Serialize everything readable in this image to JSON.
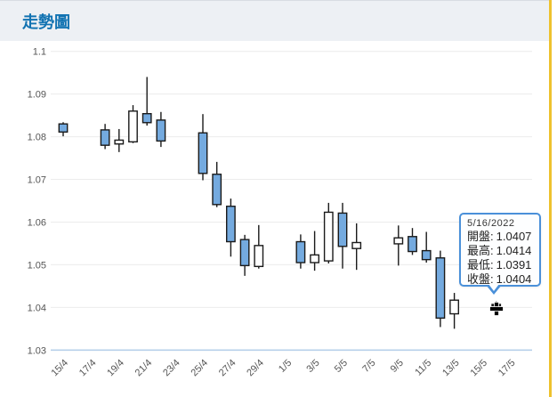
{
  "header": {
    "title": "走勢圖"
  },
  "colors": {
    "title": "#1273b2",
    "header_bg": "#edf0f4",
    "candle_up_fill": "#ffffff",
    "candle_down_fill": "#74aadf",
    "candle_stroke": "#1a1a1a",
    "grid": "#ececec",
    "axis_line": "#b7d0ea",
    "axis_label": "#555555",
    "tooltip_border": "#4a90d9",
    "tooltip_bg": "#fdfeff",
    "side_border": "#eec22e",
    "cursor": "#000000"
  },
  "chart_data": {
    "type": "candlestick",
    "title": "走勢圖",
    "ylim": [
      1.03,
      1.1
    ],
    "grid": true,
    "y_ticks": [
      1.1,
      1.09,
      1.08,
      1.07,
      1.06,
      1.05,
      1.04,
      1.03
    ],
    "y_tick_labels": [
      "1.1",
      "1.09",
      "1.08",
      "1.07",
      "1.06",
      "1.05",
      "1.04",
      "1.03"
    ],
    "x_tick_labels": [
      "15/4",
      "17/4",
      "19/4",
      "21/4",
      "23/4",
      "25/4",
      "27/4",
      "29/4",
      "1/5",
      "3/5",
      "5/5",
      "7/5",
      "9/5",
      "11/5",
      "13/5",
      "15/5",
      "17/5"
    ],
    "x_tick_day_offsets": [
      0,
      2,
      4,
      6,
      8,
      10,
      12,
      14,
      16,
      18,
      20,
      22,
      24,
      26,
      28,
      30,
      32
    ],
    "candles": [
      {
        "date": "15/4",
        "day_offset": 0,
        "open": 1.083,
        "high": 1.0834,
        "low": 1.0801,
        "close": 1.0811
      },
      {
        "date": "18/4",
        "day_offset": 3,
        "open": 1.0816,
        "high": 1.083,
        "low": 1.0771,
        "close": 1.078
      },
      {
        "date": "19/4",
        "day_offset": 4,
        "open": 1.0783,
        "high": 1.0818,
        "low": 1.0764,
        "close": 1.0792
      },
      {
        "date": "20/4",
        "day_offset": 5,
        "open": 1.0788,
        "high": 1.0874,
        "low": 1.0785,
        "close": 1.086
      },
      {
        "date": "21/4",
        "day_offset": 6,
        "open": 1.0854,
        "high": 1.094,
        "low": 1.0826,
        "close": 1.0833
      },
      {
        "date": "22/4",
        "day_offset": 7,
        "open": 1.0839,
        "high": 1.0858,
        "low": 1.0776,
        "close": 1.079
      },
      {
        "date": "25/4",
        "day_offset": 10,
        "open": 1.0809,
        "high": 1.0853,
        "low": 1.0698,
        "close": 1.0714
      },
      {
        "date": "26/4",
        "day_offset": 11,
        "open": 1.0712,
        "high": 1.0741,
        "low": 1.0635,
        "close": 1.0641
      },
      {
        "date": "27/4",
        "day_offset": 12,
        "open": 1.0637,
        "high": 1.0655,
        "low": 1.0519,
        "close": 1.0554
      },
      {
        "date": "28/4",
        "day_offset": 13,
        "open": 1.0559,
        "high": 1.057,
        "low": 1.0474,
        "close": 1.0498
      },
      {
        "date": "29/4",
        "day_offset": 14,
        "open": 1.0496,
        "high": 1.0593,
        "low": 1.0491,
        "close": 1.0545
      },
      {
        "date": "2/5",
        "day_offset": 17,
        "open": 1.0554,
        "high": 1.0571,
        "low": 1.0491,
        "close": 1.0505
      },
      {
        "date": "3/5",
        "day_offset": 18,
        "open": 1.0505,
        "high": 1.0579,
        "low": 1.0486,
        "close": 1.0523
      },
      {
        "date": "4/5",
        "day_offset": 19,
        "open": 1.0509,
        "high": 1.0645,
        "low": 1.0503,
        "close": 1.0623
      },
      {
        "date": "5/5",
        "day_offset": 20,
        "open": 1.0621,
        "high": 1.0645,
        "low": 1.0491,
        "close": 1.0543
      },
      {
        "date": "6/5",
        "day_offset": 21,
        "open": 1.0538,
        "high": 1.0597,
        "low": 1.0488,
        "close": 1.0552
      },
      {
        "date": "9/5",
        "day_offset": 24,
        "open": 1.0549,
        "high": 1.0592,
        "low": 1.0498,
        "close": 1.0563
      },
      {
        "date": "10/5",
        "day_offset": 25,
        "open": 1.0566,
        "high": 1.0586,
        "low": 1.0523,
        "close": 1.0531
      },
      {
        "date": "11/5",
        "day_offset": 26,
        "open": 1.0533,
        "high": 1.0577,
        "low": 1.0505,
        "close": 1.0512
      },
      {
        "date": "12/5",
        "day_offset": 27,
        "open": 1.0516,
        "high": 1.0533,
        "low": 1.0354,
        "close": 1.0375
      },
      {
        "date": "13/5",
        "day_offset": 28,
        "open": 1.0385,
        "high": 1.0434,
        "low": 1.035,
        "close": 1.0417
      },
      {
        "date": "16/5",
        "day_offset": 31,
        "open": 1.0407,
        "high": 1.0414,
        "low": 1.0391,
        "close": 1.0404
      }
    ]
  },
  "tooltip": {
    "date": "5/16/2022",
    "rows": [
      {
        "label": "開盤",
        "sep": ":",
        "value": "1.0407"
      },
      {
        "label": "最高",
        "sep": ":",
        "value": "1.0414"
      },
      {
        "label": "最低",
        "sep": ":",
        "value": "1.0391"
      },
      {
        "label": "收盤",
        "sep": ":",
        "value": "1.0404"
      }
    ]
  }
}
